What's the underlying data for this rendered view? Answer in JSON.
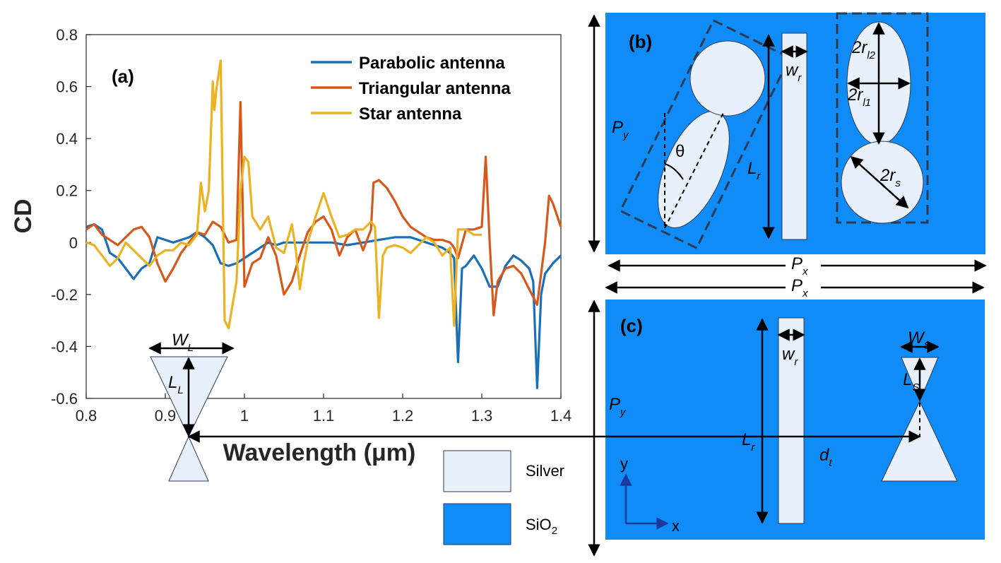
{
  "colors": {
    "sio2": "#0f8cf7",
    "silver": "#e8f0fb",
    "parabolic": "#1a70b8",
    "triangular": "#d8571b",
    "star": "#ebb221"
  },
  "chart_data": {
    "type": "line",
    "panel_label": "(a)",
    "xlabel": "Wavelength (μm)",
    "ylabel": "CD",
    "xlim": [
      0.8,
      1.4
    ],
    "ylim": [
      -0.6,
      0.8
    ],
    "x_ticks": [
      "0.8",
      "0.9",
      "1",
      "1.1",
      "1.2",
      "1.3",
      "1.4"
    ],
    "y_ticks": [
      "0.8",
      "0.6",
      "0.4",
      "0.2",
      "0",
      "-0.2",
      "-0.4",
      "-0.6"
    ],
    "legend_position": "top-right",
    "series": [
      {
        "name": "Parabolic antenna",
        "color": "#1a70b8",
        "points": [
          [
            0.8,
            0.06
          ],
          [
            0.81,
            0.07
          ],
          [
            0.82,
            0.05
          ],
          [
            0.83,
            -0.04
          ],
          [
            0.84,
            -0.06
          ],
          [
            0.85,
            -0.1
          ],
          [
            0.86,
            -0.14
          ],
          [
            0.87,
            -0.1
          ],
          [
            0.88,
            -0.08
          ],
          [
            0.89,
            0.02
          ],
          [
            0.9,
            0.01
          ],
          [
            0.91,
            0.0
          ],
          [
            0.92,
            0.01
          ],
          [
            0.93,
            0.02
          ],
          [
            0.94,
            0.04
          ],
          [
            0.95,
            0.02
          ],
          [
            0.96,
            -0.01
          ],
          [
            0.97,
            -0.08
          ],
          [
            0.98,
            -0.09
          ],
          [
            0.99,
            -0.08
          ],
          [
            1.0,
            -0.06
          ],
          [
            1.01,
            -0.04
          ],
          [
            1.02,
            -0.02
          ],
          [
            1.03,
            0.0
          ],
          [
            1.04,
            -0.01
          ],
          [
            1.05,
            0.0
          ],
          [
            1.07,
            0.0
          ],
          [
            1.09,
            0.0
          ],
          [
            1.11,
            0.0
          ],
          [
            1.13,
            -0.01
          ],
          [
            1.15,
            0.0
          ],
          [
            1.17,
            0.01
          ],
          [
            1.19,
            0.02
          ],
          [
            1.21,
            0.02
          ],
          [
            1.23,
            0.0
          ],
          [
            1.25,
            -0.02
          ],
          [
            1.26,
            -0.04
          ],
          [
            1.265,
            -0.06
          ],
          [
            1.27,
            -0.46
          ],
          [
            1.275,
            -0.1
          ],
          [
            1.28,
            -0.09
          ],
          [
            1.29,
            -0.05
          ],
          [
            1.3,
            -0.1
          ],
          [
            1.31,
            -0.17
          ],
          [
            1.32,
            -0.17
          ],
          [
            1.33,
            -0.09
          ],
          [
            1.34,
            -0.05
          ],
          [
            1.35,
            -0.07
          ],
          [
            1.36,
            -0.1
          ],
          [
            1.365,
            -0.15
          ],
          [
            1.37,
            -0.56
          ],
          [
            1.375,
            -0.2
          ],
          [
            1.38,
            -0.12
          ],
          [
            1.39,
            -0.08
          ],
          [
            1.4,
            -0.05
          ]
        ]
      },
      {
        "name": "Triangular antenna",
        "color": "#d8571b",
        "points": [
          [
            0.8,
            0.05
          ],
          [
            0.81,
            0.07
          ],
          [
            0.82,
            0.03
          ],
          [
            0.83,
            0.01
          ],
          [
            0.84,
            -0.01
          ],
          [
            0.85,
            0.02
          ],
          [
            0.86,
            0.05
          ],
          [
            0.87,
            0.06
          ],
          [
            0.88,
            0.02
          ],
          [
            0.89,
            -0.08
          ],
          [
            0.9,
            -0.15
          ],
          [
            0.91,
            -0.1
          ],
          [
            0.92,
            -0.04
          ],
          [
            0.93,
            0.0
          ],
          [
            0.94,
            0.04
          ],
          [
            0.95,
            0.03
          ],
          [
            0.96,
            0.08
          ],
          [
            0.97,
            0.06
          ],
          [
            0.98,
            0.0
          ],
          [
            0.99,
            0.01
          ],
          [
            0.995,
            0.54
          ],
          [
            1.0,
            -0.17
          ],
          [
            1.01,
            -0.08
          ],
          [
            1.02,
            -0.06
          ],
          [
            1.03,
            0.02
          ],
          [
            1.04,
            -0.05
          ],
          [
            1.05,
            -0.2
          ],
          [
            1.06,
            -0.15
          ],
          [
            1.07,
            -0.05
          ],
          [
            1.08,
            0.04
          ],
          [
            1.09,
            0.08
          ],
          [
            1.1,
            0.1
          ],
          [
            1.11,
            0.05
          ],
          [
            1.12,
            -0.05
          ],
          [
            1.13,
            0.02
          ],
          [
            1.14,
            0.05
          ],
          [
            1.15,
            -0.03
          ],
          [
            1.16,
            0.05
          ],
          [
            1.163,
            0.23
          ],
          [
            1.17,
            0.24
          ],
          [
            1.18,
            0.21
          ],
          [
            1.19,
            0.16
          ],
          [
            1.2,
            0.1
          ],
          [
            1.21,
            0.06
          ],
          [
            1.22,
            0.04
          ],
          [
            1.23,
            0.02
          ],
          [
            1.24,
            0.01
          ],
          [
            1.25,
            0.01
          ],
          [
            1.26,
            0.0
          ],
          [
            1.265,
            -0.02
          ],
          [
            1.27,
            -0.06
          ],
          [
            1.28,
            0.05
          ],
          [
            1.29,
            0.05
          ],
          [
            1.3,
            0.06
          ],
          [
            1.305,
            0.33
          ],
          [
            1.31,
            0.0
          ],
          [
            1.315,
            -0.28
          ],
          [
            1.32,
            -0.15
          ],
          [
            1.33,
            -0.1
          ],
          [
            1.34,
            -0.09
          ],
          [
            1.35,
            -0.12
          ],
          [
            1.36,
            -0.18
          ],
          [
            1.37,
            -0.24
          ],
          [
            1.38,
            0.0
          ],
          [
            1.385,
            0.18
          ],
          [
            1.39,
            0.15
          ],
          [
            1.4,
            0.06
          ]
        ]
      },
      {
        "name": "Star antenna",
        "color": "#ebb221",
        "points": [
          [
            0.8,
            0.0
          ],
          [
            0.81,
            -0.01
          ],
          [
            0.82,
            -0.05
          ],
          [
            0.83,
            -0.09
          ],
          [
            0.84,
            -0.06
          ],
          [
            0.85,
            0.0
          ],
          [
            0.86,
            -0.03
          ],
          [
            0.87,
            -0.06
          ],
          [
            0.88,
            -0.09
          ],
          [
            0.89,
            -0.05
          ],
          [
            0.9,
            -0.03
          ],
          [
            0.91,
            -0.03
          ],
          [
            0.92,
            0.0
          ],
          [
            0.93,
            -0.01
          ],
          [
            0.94,
            0.03
          ],
          [
            0.945,
            0.23
          ],
          [
            0.95,
            0.12
          ],
          [
            0.955,
            0.2
          ],
          [
            0.96,
            0.62
          ],
          [
            0.962,
            0.51
          ],
          [
            0.965,
            0.6
          ],
          [
            0.97,
            0.7
          ],
          [
            0.975,
            -0.3
          ],
          [
            0.98,
            -0.33
          ],
          [
            0.99,
            -0.15
          ],
          [
            0.995,
            0.2
          ],
          [
            1.0,
            0.33
          ],
          [
            1.005,
            0.31
          ],
          [
            1.01,
            0.1
          ],
          [
            1.02,
            0.05
          ],
          [
            1.03,
            0.1
          ],
          [
            1.04,
            -0.02
          ],
          [
            1.05,
            -0.04
          ],
          [
            1.06,
            0.07
          ],
          [
            1.065,
            -0.03
          ],
          [
            1.07,
            -0.18
          ],
          [
            1.075,
            -0.08
          ],
          [
            1.08,
            0.0
          ],
          [
            1.09,
            0.1
          ],
          [
            1.1,
            0.19
          ],
          [
            1.11,
            0.1
          ],
          [
            1.12,
            0.02
          ],
          [
            1.13,
            0.03
          ],
          [
            1.14,
            0.05
          ],
          [
            1.15,
            0.05
          ],
          [
            1.16,
            0.08
          ],
          [
            1.165,
            0.06
          ],
          [
            1.17,
            -0.29
          ],
          [
            1.175,
            -0.05
          ],
          [
            1.18,
            -0.02
          ],
          [
            1.19,
            -0.01
          ],
          [
            1.2,
            -0.02
          ],
          [
            1.21,
            -0.04
          ],
          [
            1.22,
            -0.01
          ],
          [
            1.23,
            0.02
          ],
          [
            1.24,
            0.0
          ],
          [
            1.25,
            -0.05
          ],
          [
            1.26,
            -0.02
          ],
          [
            1.265,
            -0.32
          ],
          [
            1.27,
            0.05
          ],
          [
            1.28,
            0.05
          ],
          [
            1.29,
            0.03
          ],
          [
            1.3,
            0.03
          ]
        ]
      }
    ]
  },
  "diagram_b": {
    "panel_label": "(b)",
    "labels": {
      "py": "P",
      "py_sub": "y",
      "lr": "L",
      "lr_sub": "r",
      "wr": "w",
      "wr_sub": "r",
      "theta": "θ",
      "rl2": "2r",
      "rl2_sub": "l2",
      "rl1": "2r",
      "rl1_sub": "l1",
      "rs": "2r",
      "rs_sub": "s",
      "px": "P",
      "px_sub": "x"
    }
  },
  "diagram_c": {
    "panel_label": "(c)",
    "labels": {
      "px": "P",
      "px_sub": "x",
      "wl": "W",
      "wl_sub": "L",
      "ll": "L",
      "ll_sub": "L",
      "py": "P",
      "py_sub": "y",
      "lr": "L",
      "lr_sub": "r",
      "wr": "w",
      "wr_sub": "r",
      "ws": "W",
      "ws_sub": "S",
      "ls": "L",
      "ls_sub": "S",
      "dt": "d",
      "dt_sub": "t",
      "axis_y": "y",
      "axis_x": "x"
    }
  },
  "material_legend": {
    "silver": "Silver",
    "sio2_main": "SiO",
    "sio2_sub": "2"
  }
}
